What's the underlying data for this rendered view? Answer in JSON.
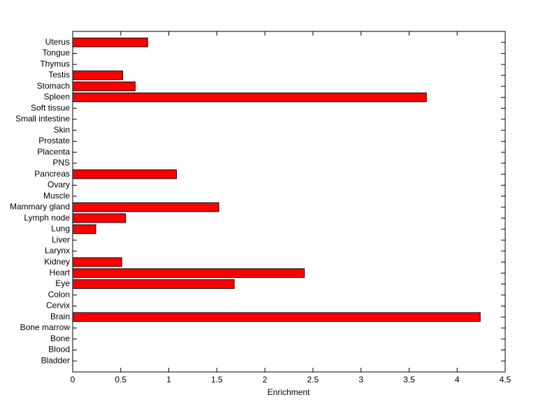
{
  "chart_data": {
    "type": "barh",
    "xlabel": "Enrichment",
    "categories": [
      "Bladder",
      "Blood",
      "Bone",
      "Bone marrow",
      "Brain",
      "Cervix",
      "Colon",
      "Eye",
      "Heart",
      "Kidney",
      "Larynx",
      "Liver",
      "Lung",
      "Lymph node",
      "Mammary gland",
      "Muscle",
      "Ovary",
      "Pancreas",
      "PNS",
      "Placenta",
      "Prostate",
      "Skin",
      "Small intestine",
      "Soft tissue",
      "Spleen",
      "Stomach",
      "Testis",
      "Thymus",
      "Tongue",
      "Uterus"
    ],
    "values": [
      0,
      0,
      0,
      0,
      4.24,
      0,
      0,
      1.68,
      2.41,
      0.51,
      0,
      0,
      0.24,
      0.55,
      1.52,
      0,
      0,
      1.08,
      0,
      0,
      0,
      0,
      0,
      0,
      3.68,
      0.65,
      0.52,
      0,
      0,
      0.78
    ],
    "color": "#ff0000",
    "xlim": [
      0,
      4.5
    ],
    "xticks": [
      0,
      0.5,
      1,
      1.5,
      2,
      2.5,
      3,
      3.5,
      4,
      4.5
    ]
  }
}
